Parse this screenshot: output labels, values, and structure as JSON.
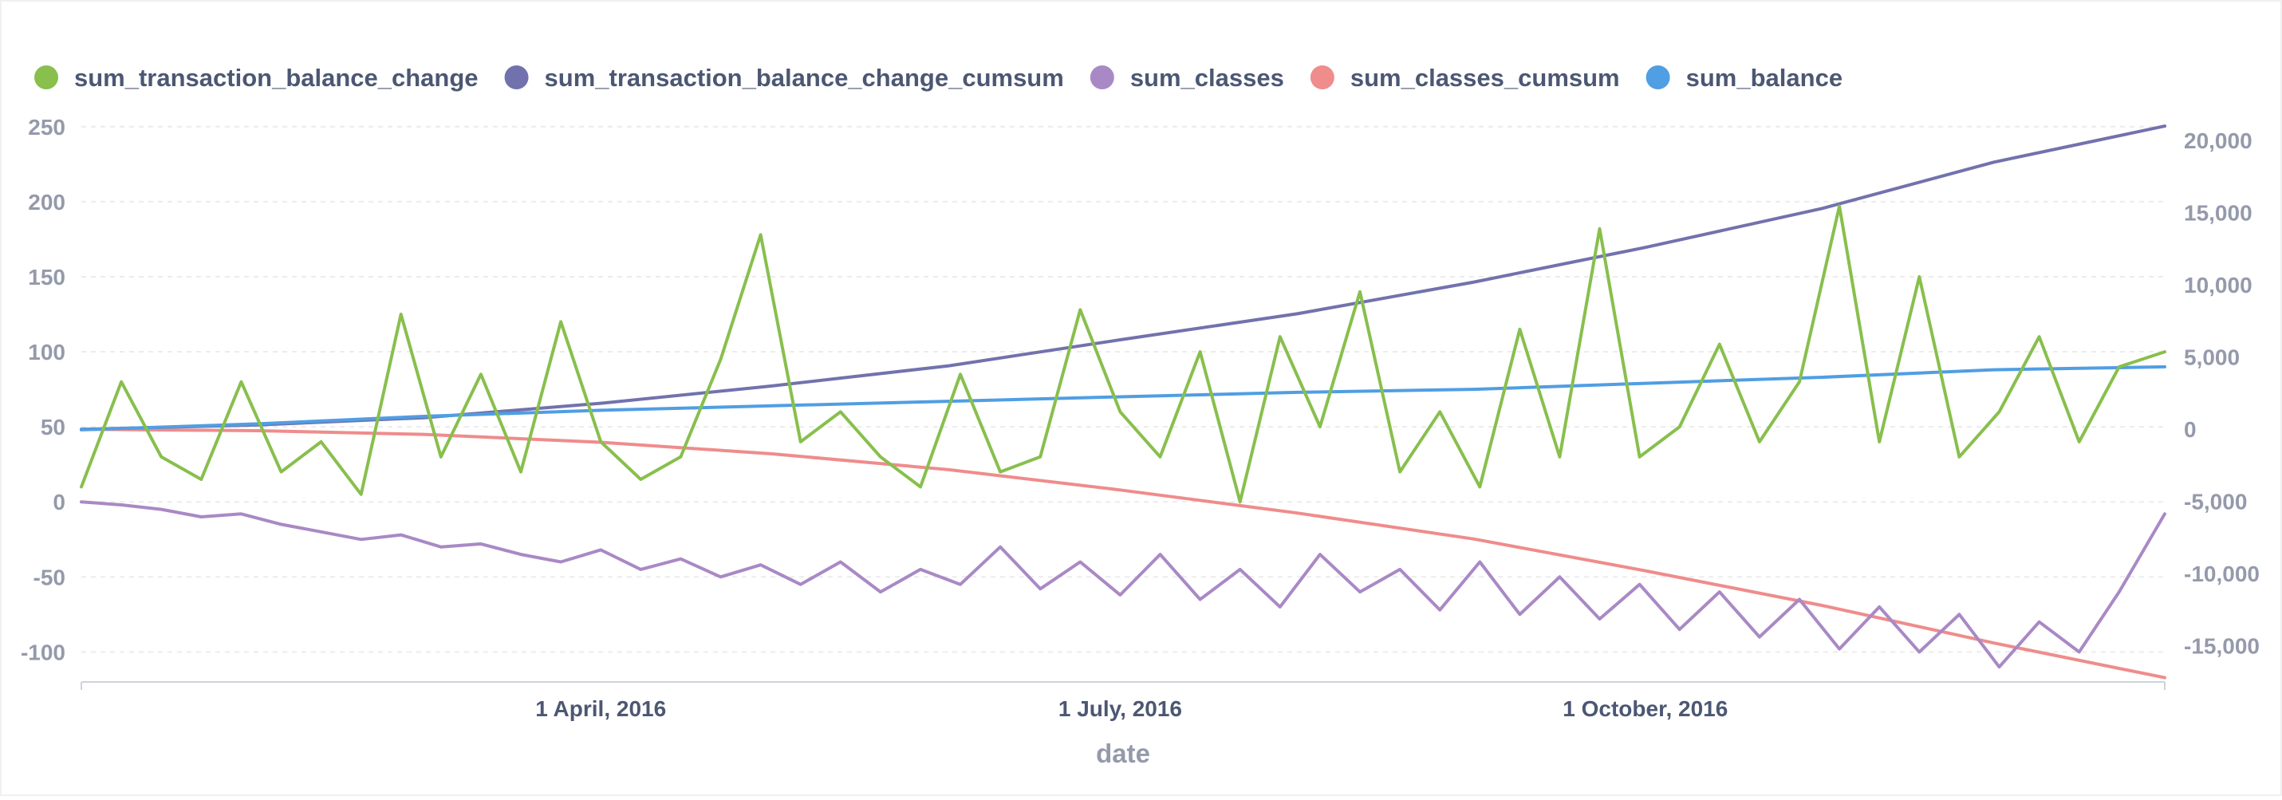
{
  "chart_data": {
    "type": "line",
    "title": "",
    "xlabel": "date",
    "x_range": [
      "2016-01-01",
      "2016-12-31"
    ],
    "x_tick_labels": [
      "1 April, 2016",
      "1 July, 2016",
      "1 October, 2016"
    ],
    "x_tick_dates": [
      "2016-04-01",
      "2016-07-01",
      "2016-10-01"
    ],
    "grid": true,
    "legend_position": "top-left",
    "y_left": {
      "range": [
        -120,
        260
      ],
      "ticks": [
        -100,
        -50,
        0,
        50,
        100,
        150,
        200,
        250
      ],
      "tick_labels": [
        "-100",
        "-50",
        "0",
        "50",
        "100",
        "150",
        "200",
        "250"
      ]
    },
    "y_right": {
      "range": [
        -17500,
        22000
      ],
      "ticks": [
        -15000,
        -10000,
        -5000,
        0,
        5000,
        10000,
        15000,
        20000
      ],
      "tick_labels": [
        "-15,000",
        "-10,000",
        "-5,000",
        "0",
        "5,000",
        "10,000",
        "15,000",
        "20,000"
      ]
    },
    "series": [
      {
        "name": "sum_transaction_balance_change",
        "axis": "left",
        "color": "#88bf4d",
        "x": [
          "2016-01-01",
          "2016-01-08",
          "2016-01-15",
          "2016-01-22",
          "2016-01-29",
          "2016-02-05",
          "2016-02-12",
          "2016-02-19",
          "2016-02-26",
          "2016-03-04",
          "2016-03-11",
          "2016-03-18",
          "2016-03-25",
          "2016-04-01",
          "2016-04-08",
          "2016-04-15",
          "2016-04-22",
          "2016-04-29",
          "2016-05-06",
          "2016-05-13",
          "2016-05-20",
          "2016-05-27",
          "2016-06-03",
          "2016-06-10",
          "2016-06-17",
          "2016-06-24",
          "2016-07-01",
          "2016-07-08",
          "2016-07-15",
          "2016-07-22",
          "2016-07-29",
          "2016-08-05",
          "2016-08-12",
          "2016-08-19",
          "2016-08-26",
          "2016-09-02",
          "2016-09-09",
          "2016-09-16",
          "2016-09-23",
          "2016-09-30",
          "2016-10-07",
          "2016-10-14",
          "2016-10-21",
          "2016-10-28",
          "2016-11-04",
          "2016-11-11",
          "2016-11-18",
          "2016-11-25",
          "2016-12-02",
          "2016-12-09",
          "2016-12-16",
          "2016-12-23",
          "2016-12-31"
        ],
        "values": [
          10,
          80,
          30,
          15,
          80,
          20,
          40,
          5,
          125,
          30,
          85,
          20,
          120,
          40,
          15,
          30,
          95,
          178,
          40,
          60,
          30,
          10,
          85,
          20,
          30,
          128,
          60,
          30,
          100,
          0,
          110,
          50,
          140,
          20,
          60,
          10,
          115,
          30,
          182,
          30,
          50,
          105,
          40,
          80,
          197,
          40,
          150,
          30,
          60,
          110,
          40,
          90,
          100
        ]
      },
      {
        "name": "sum_transaction_balance_change_cumsum",
        "axis": "right",
        "color": "#7172ad",
        "x": [
          "2016-01-01",
          "2016-02-01",
          "2016-03-01",
          "2016-04-01",
          "2016-05-01",
          "2016-06-01",
          "2016-07-01",
          "2016-08-01",
          "2016-09-01",
          "2016-10-01",
          "2016-11-01",
          "2016-12-01",
          "2016-12-31"
        ],
        "values": [
          0,
          300,
          800,
          1800,
          3000,
          4400,
          6200,
          8000,
          10200,
          12600,
          15300,
          18500,
          21000
        ]
      },
      {
        "name": "sum_classes",
        "axis": "left",
        "color": "#a989c5",
        "x": [
          "2016-01-01",
          "2016-01-08",
          "2016-01-15",
          "2016-01-22",
          "2016-01-29",
          "2016-02-05",
          "2016-02-12",
          "2016-02-19",
          "2016-02-26",
          "2016-03-04",
          "2016-03-11",
          "2016-03-18",
          "2016-03-25",
          "2016-04-01",
          "2016-04-08",
          "2016-04-15",
          "2016-04-22",
          "2016-04-29",
          "2016-05-06",
          "2016-05-13",
          "2016-05-20",
          "2016-05-27",
          "2016-06-03",
          "2016-06-10",
          "2016-06-17",
          "2016-06-24",
          "2016-07-01",
          "2016-07-08",
          "2016-07-15",
          "2016-07-22",
          "2016-07-29",
          "2016-08-05",
          "2016-08-12",
          "2016-08-19",
          "2016-08-26",
          "2016-09-02",
          "2016-09-09",
          "2016-09-16",
          "2016-09-23",
          "2016-09-30",
          "2016-10-07",
          "2016-10-14",
          "2016-10-21",
          "2016-10-28",
          "2016-11-04",
          "2016-11-11",
          "2016-11-18",
          "2016-11-25",
          "2016-12-02",
          "2016-12-09",
          "2016-12-16",
          "2016-12-23",
          "2016-12-31"
        ],
        "values": [
          0,
          -2,
          -5,
          -10,
          -8,
          -15,
          -20,
          -25,
          -22,
          -30,
          -28,
          -35,
          -40,
          -32,
          -45,
          -38,
          -50,
          -42,
          -55,
          -40,
          -60,
          -45,
          -55,
          -30,
          -58,
          -40,
          -62,
          -35,
          -65,
          -45,
          -70,
          -35,
          -60,
          -45,
          -72,
          -40,
          -75,
          -50,
          -78,
          -55,
          -85,
          -60,
          -90,
          -65,
          -98,
          -70,
          -100,
          -75,
          -110,
          -80,
          -100,
          -60,
          -8
        ]
      },
      {
        "name": "sum_classes_cumsum",
        "axis": "right",
        "color": "#ef8c8c",
        "x": [
          "2016-01-01",
          "2016-02-01",
          "2016-03-01",
          "2016-04-01",
          "2016-05-01",
          "2016-06-01",
          "2016-07-01",
          "2016-08-01",
          "2016-09-01",
          "2016-10-01",
          "2016-11-01",
          "2016-12-01",
          "2016-12-31"
        ],
        "values": [
          0,
          -100,
          -350,
          -900,
          -1700,
          -2800,
          -4200,
          -5800,
          -7600,
          -9800,
          -12200,
          -14800,
          -17200
        ]
      },
      {
        "name": "sum_balance",
        "axis": "left",
        "color": "#509ee3",
        "x": [
          "2016-01-01",
          "2016-02-01",
          "2016-03-01",
          "2016-04-01",
          "2016-05-01",
          "2016-06-01",
          "2016-07-01",
          "2016-08-01",
          "2016-09-01",
          "2016-10-01",
          "2016-11-01",
          "2016-12-01",
          "2016-12-31"
        ],
        "values": [
          48,
          52,
          57,
          61,
          64,
          67,
          70,
          73,
          75,
          79,
          83,
          88,
          90
        ]
      }
    ]
  }
}
